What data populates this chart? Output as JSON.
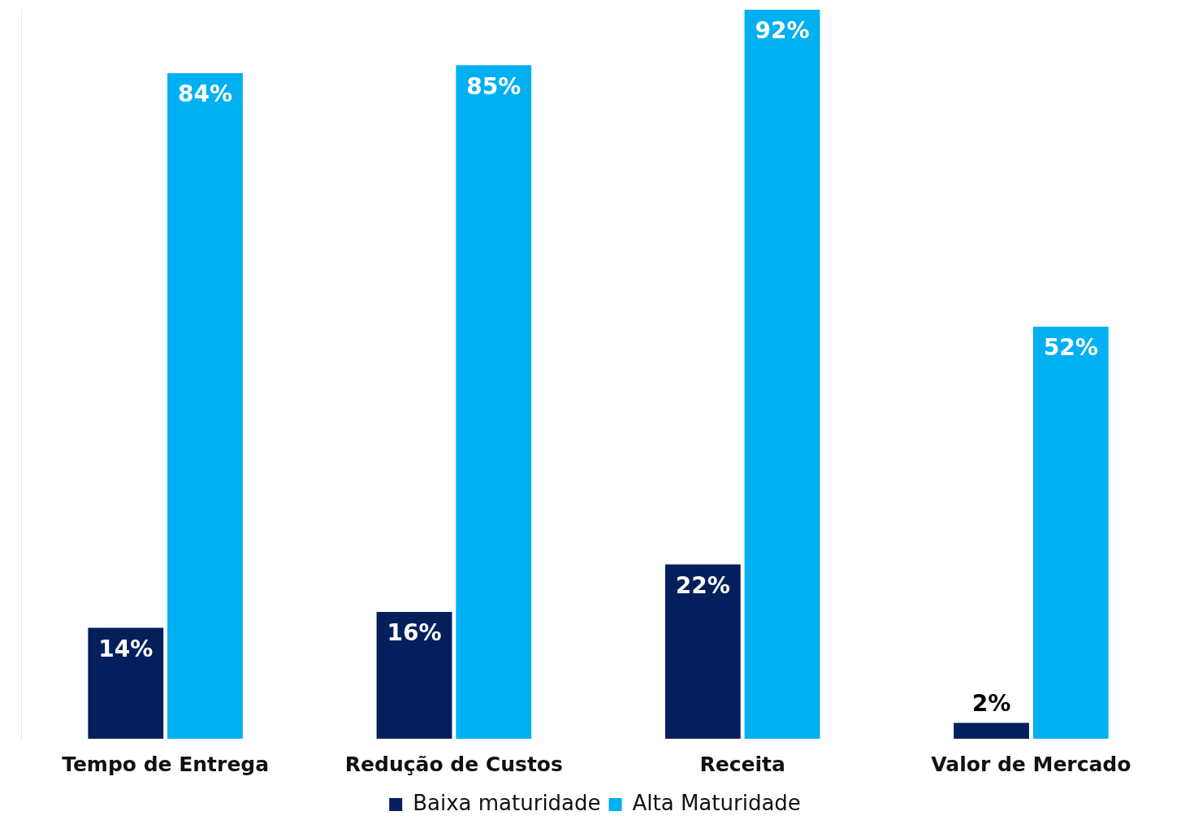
{
  "chart_data": {
    "type": "bar",
    "relative": false,
    "categories": [
      "Tempo de Entrega",
      "Redução de Custos",
      "Receita",
      "Valor de Mercado"
    ],
    "series": [
      {
        "name": "Baixa maturidade",
        "color": "#041f5c",
        "values": [
          14,
          16,
          22,
          2
        ],
        "value_labels": [
          "14%",
          "16%",
          "22%",
          "2%"
        ]
      },
      {
        "name": "Alta Maturidade",
        "color": "#00b0f0",
        "values": [
          84,
          85,
          92,
          52
        ],
        "value_labels": [
          "84%",
          "85%",
          "92%",
          "52%"
        ]
      }
    ],
    "legend": "bottom",
    "grid": false
  }
}
